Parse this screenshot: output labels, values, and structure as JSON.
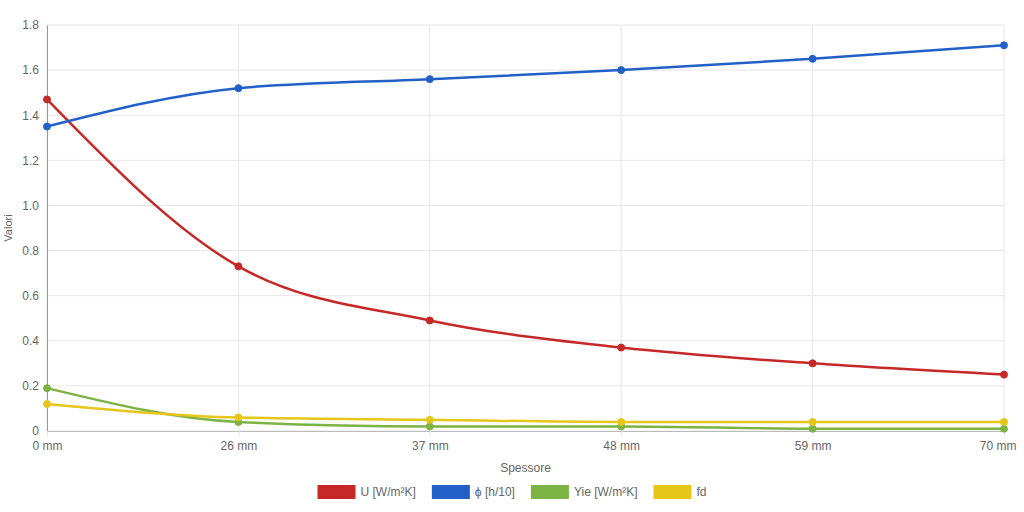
{
  "chart_data": {
    "type": "line",
    "x_label": "Spessore",
    "y_label": "Valori",
    "categories": [
      "0 mm",
      "26 mm",
      "37 mm",
      "48 mm",
      "59 mm",
      "70 mm"
    ],
    "series": [
      {
        "name": "U [W/m²K]",
        "color": "#c62828",
        "values": [
          1.47,
          0.73,
          0.49,
          0.37,
          0.3,
          0.25
        ]
      },
      {
        "name": "ϕ [h/10]",
        "color": "#2260c8",
        "values": [
          1.35,
          1.52,
          1.56,
          1.6,
          1.65,
          1.71
        ]
      },
      {
        "name": "Yie [W/m²K]",
        "color": "#7cb342",
        "values": [
          0.19,
          0.04,
          0.02,
          0.02,
          0.01,
          0.01
        ]
      },
      {
        "name": "fd",
        "color": "#e6c619",
        "values": [
          0.12,
          0.06,
          0.05,
          0.04,
          0.04,
          0.04
        ]
      }
    ],
    "ylim": [
      0,
      1.8
    ],
    "yticks": [
      0,
      0.2,
      0.4,
      0.6,
      0.8,
      {
        "value": 1,
        "label": "1.0"
      },
      1.2,
      1.4,
      1.6,
      1.8
    ],
    "grid": true,
    "legend": "bottom",
    "marker": "circle",
    "line_style": "smooth"
  }
}
